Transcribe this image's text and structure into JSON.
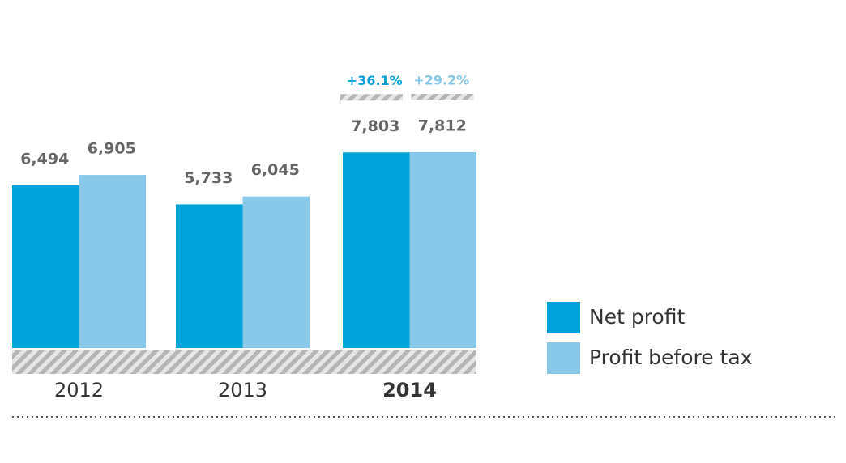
{
  "chart_data": {
    "type": "bar",
    "categories": [
      "2012",
      "2013",
      "2014"
    ],
    "highlight": 2,
    "highlight_color": "#0a7fc0",
    "series": [
      {
        "name": "Net profit",
        "color": "#00a3da",
        "values": [
          6494,
          5733,
          7803
        ],
        "value_labels": [
          "6,494",
          "5,733",
          "7,803"
        ],
        "growth_label": "+36.1%",
        "growth_color": "#0a9fd6"
      },
      {
        "name": "Profit before tax",
        "color": "#88c8e8",
        "values": [
          6905,
          6045,
          7812
        ],
        "value_labels": [
          "6,905",
          "6,045",
          "7,812"
        ],
        "growth_label": "+29.2%",
        "growth_color": "#88c8e8"
      }
    ]
  }
}
